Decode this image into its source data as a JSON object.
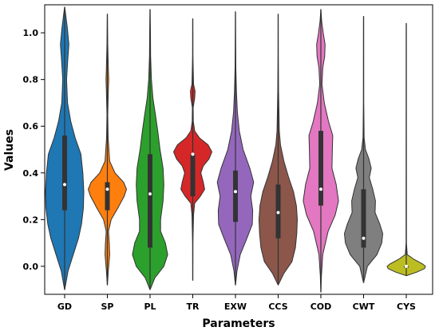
{
  "chart_data": {
    "type": "violin",
    "xlabel": "Parameters",
    "ylabel": "Values",
    "ylim": [
      -0.12,
      1.12
    ],
    "yticks": [
      "0.0",
      "0.2",
      "0.4",
      "0.6",
      "0.8",
      "1.0"
    ],
    "grid": false,
    "legend": "none",
    "series": [
      {
        "name": "GD",
        "color": "#1f77b4",
        "min": -0.1,
        "q1": 0.24,
        "median": 0.35,
        "q3": 0.56,
        "max": 1.11,
        "density": [
          [
            -0.1,
            0.005
          ],
          [
            -0.02,
            0.18
          ],
          [
            0.05,
            0.45
          ],
          [
            0.12,
            0.72
          ],
          [
            0.18,
            0.88
          ],
          [
            0.25,
            0.98
          ],
          [
            0.32,
            1.0
          ],
          [
            0.4,
            0.95
          ],
          [
            0.48,
            0.85
          ],
          [
            0.55,
            0.55
          ],
          [
            0.62,
            0.32
          ],
          [
            0.7,
            0.15
          ],
          [
            0.8,
            0.1
          ],
          [
            0.88,
            0.16
          ],
          [
            0.95,
            0.22
          ],
          [
            1.02,
            0.14
          ],
          [
            1.08,
            0.05
          ],
          [
            1.11,
            0.005
          ]
        ]
      },
      {
        "name": "SP",
        "color": "#ff7f0e",
        "min": -0.08,
        "q1": 0.24,
        "median": 0.33,
        "q3": 0.36,
        "max": 1.08,
        "density": [
          [
            -0.08,
            0.005
          ],
          [
            -0.02,
            0.05
          ],
          [
            0.05,
            0.12
          ],
          [
            0.1,
            0.1
          ],
          [
            0.15,
            0.06
          ],
          [
            0.2,
            0.2
          ],
          [
            0.25,
            0.55
          ],
          [
            0.3,
            0.88
          ],
          [
            0.33,
            1.0
          ],
          [
            0.36,
            0.85
          ],
          [
            0.4,
            0.4
          ],
          [
            0.45,
            0.12
          ],
          [
            0.55,
            0.04
          ],
          [
            0.65,
            0.02
          ],
          [
            0.75,
            0.05
          ],
          [
            0.8,
            0.07
          ],
          [
            0.85,
            0.05
          ],
          [
            0.95,
            0.02
          ],
          [
            1.08,
            0.005
          ]
        ]
      },
      {
        "name": "PL",
        "color": "#2ca02c",
        "min": -0.1,
        "q1": 0.08,
        "median": 0.31,
        "q3": 0.48,
        "max": 1.1,
        "density": [
          [
            -0.1,
            0.005
          ],
          [
            -0.05,
            0.25
          ],
          [
            0.0,
            0.72
          ],
          [
            0.05,
            0.92
          ],
          [
            0.1,
            0.8
          ],
          [
            0.15,
            0.55
          ],
          [
            0.2,
            0.55
          ],
          [
            0.28,
            0.68
          ],
          [
            0.35,
            0.72
          ],
          [
            0.42,
            0.68
          ],
          [
            0.5,
            0.52
          ],
          [
            0.58,
            0.4
          ],
          [
            0.65,
            0.28
          ],
          [
            0.72,
            0.15
          ],
          [
            0.8,
            0.07
          ],
          [
            0.9,
            0.03
          ],
          [
            1.0,
            0.02
          ],
          [
            1.1,
            0.005
          ]
        ]
      },
      {
        "name": "TR",
        "color": "#d62728",
        "min": -0.06,
        "q1": 0.3,
        "median": 0.48,
        "q3": 0.48,
        "max": 1.06,
        "density": [
          [
            -0.06,
            0.005
          ],
          [
            0.1,
            0.01
          ],
          [
            0.22,
            0.04
          ],
          [
            0.27,
            0.1
          ],
          [
            0.3,
            0.4
          ],
          [
            0.33,
            0.62
          ],
          [
            0.36,
            0.55
          ],
          [
            0.4,
            0.42
          ],
          [
            0.43,
            0.55
          ],
          [
            0.46,
            0.85
          ],
          [
            0.49,
            1.0
          ],
          [
            0.52,
            0.8
          ],
          [
            0.55,
            0.35
          ],
          [
            0.58,
            0.1
          ],
          [
            0.62,
            0.03
          ],
          [
            0.68,
            0.02
          ],
          [
            0.72,
            0.1
          ],
          [
            0.75,
            0.12
          ],
          [
            0.78,
            0.04
          ],
          [
            0.9,
            0.01
          ],
          [
            1.06,
            0.005
          ]
        ]
      },
      {
        "name": "EXW",
        "color": "#9467bd",
        "min": -0.08,
        "q1": 0.19,
        "median": 0.32,
        "q3": 0.41,
        "max": 1.09,
        "density": [
          [
            -0.08,
            0.005
          ],
          [
            -0.02,
            0.08
          ],
          [
            0.05,
            0.25
          ],
          [
            0.12,
            0.6
          ],
          [
            0.18,
            0.88
          ],
          [
            0.24,
            0.9
          ],
          [
            0.3,
            0.8
          ],
          [
            0.36,
            0.95
          ],
          [
            0.42,
            0.75
          ],
          [
            0.5,
            0.4
          ],
          [
            0.58,
            0.2
          ],
          [
            0.66,
            0.1
          ],
          [
            0.75,
            0.05
          ],
          [
            0.85,
            0.02
          ],
          [
            1.0,
            0.01
          ],
          [
            1.09,
            0.005
          ]
        ]
      },
      {
        "name": "CCS",
        "color": "#8c564b",
        "min": -0.08,
        "q1": 0.12,
        "median": 0.23,
        "q3": 0.35,
        "max": 1.08,
        "density": [
          [
            -0.08,
            0.005
          ],
          [
            -0.03,
            0.3
          ],
          [
            0.02,
            0.72
          ],
          [
            0.08,
            0.9
          ],
          [
            0.14,
            0.97
          ],
          [
            0.2,
            1.0
          ],
          [
            0.26,
            0.95
          ],
          [
            0.32,
            0.8
          ],
          [
            0.38,
            0.55
          ],
          [
            0.45,
            0.3
          ],
          [
            0.52,
            0.12
          ],
          [
            0.58,
            0.06
          ],
          [
            0.66,
            0.04
          ],
          [
            0.75,
            0.02
          ],
          [
            0.9,
            0.01
          ],
          [
            1.08,
            0.005
          ]
        ]
      },
      {
        "name": "COD",
        "color": "#e377c2",
        "min": -0.11,
        "q1": 0.26,
        "median": 0.33,
        "q3": 0.58,
        "max": 1.1,
        "density": [
          [
            -0.11,
            0.005
          ],
          [
            -0.04,
            0.03
          ],
          [
            0.05,
            0.1
          ],
          [
            0.15,
            0.38
          ],
          [
            0.22,
            0.75
          ],
          [
            0.28,
            0.92
          ],
          [
            0.35,
            0.8
          ],
          [
            0.42,
            0.58
          ],
          [
            0.5,
            0.6
          ],
          [
            0.56,
            0.62
          ],
          [
            0.62,
            0.4
          ],
          [
            0.7,
            0.18
          ],
          [
            0.78,
            0.06
          ],
          [
            0.85,
            0.1
          ],
          [
            0.9,
            0.2
          ],
          [
            0.95,
            0.22
          ],
          [
            1.0,
            0.12
          ],
          [
            1.05,
            0.04
          ],
          [
            1.1,
            0.005
          ]
        ]
      },
      {
        "name": "CWT",
        "color": "#7f7f7f",
        "min": -0.07,
        "q1": 0.08,
        "median": 0.12,
        "q3": 0.33,
        "max": 1.07,
        "density": [
          [
            -0.07,
            0.005
          ],
          [
            0.0,
            0.2
          ],
          [
            0.05,
            0.7
          ],
          [
            0.1,
            0.95
          ],
          [
            0.14,
            1.0
          ],
          [
            0.18,
            0.85
          ],
          [
            0.23,
            0.6
          ],
          [
            0.28,
            0.62
          ],
          [
            0.33,
            0.48
          ],
          [
            0.38,
            0.3
          ],
          [
            0.42,
            0.4
          ],
          [
            0.46,
            0.28
          ],
          [
            0.5,
            0.1
          ],
          [
            0.55,
            0.03
          ],
          [
            0.7,
            0.01
          ],
          [
            1.07,
            0.005
          ]
        ]
      },
      {
        "name": "CYS",
        "color": "#bcbd22",
        "min": -0.04,
        "q1": 0.0,
        "median": 0.0,
        "q3": 0.0,
        "max": 1.04,
        "density": [
          [
            -0.04,
            0.005
          ],
          [
            -0.025,
            0.55
          ],
          [
            -0.01,
            0.95
          ],
          [
            0.0,
            1.0
          ],
          [
            0.01,
            0.85
          ],
          [
            0.03,
            0.4
          ],
          [
            0.05,
            0.05
          ],
          [
            0.1,
            0.008
          ],
          [
            1.04,
            0.005
          ]
        ]
      }
    ]
  }
}
